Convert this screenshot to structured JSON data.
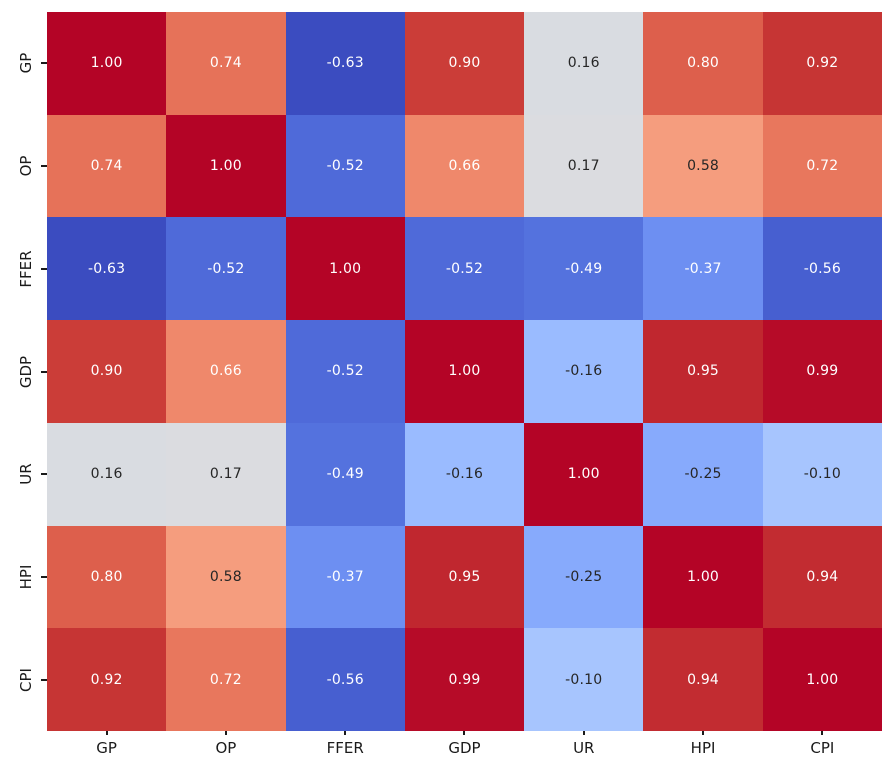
{
  "figure": {
    "background": "#ffffff",
    "tick_color": "#1a1a1a",
    "tick_label_color": "#1a1a1a"
  },
  "chart_data": {
    "type": "heatmap",
    "title": "",
    "subtitle": "",
    "categories": [
      "GP",
      "OP",
      "FFER",
      "GDP",
      "UR",
      "HPI",
      "CPI"
    ],
    "rows": [
      "GP",
      "OP",
      "FFER",
      "GDP",
      "UR",
      "HPI",
      "CPI"
    ],
    "matrix": [
      [
        1.0,
        0.74,
        -0.63,
        0.9,
        0.16,
        0.8,
        0.92
      ],
      [
        0.74,
        1.0,
        -0.52,
        0.66,
        0.17,
        0.58,
        0.72
      ],
      [
        -0.63,
        -0.52,
        1.0,
        -0.52,
        -0.49,
        -0.37,
        -0.56
      ],
      [
        0.9,
        0.66,
        -0.52,
        1.0,
        -0.16,
        0.95,
        0.99
      ],
      [
        0.16,
        0.17,
        -0.49,
        -0.16,
        1.0,
        -0.25,
        -0.1
      ],
      [
        0.8,
        0.58,
        -0.37,
        0.95,
        -0.25,
        1.0,
        0.94
      ],
      [
        0.92,
        0.72,
        -0.56,
        0.99,
        -0.1,
        0.94,
        1.0
      ]
    ],
    "vmin": -0.63,
    "vmax": 1.0,
    "decimals": 2,
    "annotations_on": true,
    "grid": false,
    "legend": "none",
    "colormap": {
      "name": "coolwarm",
      "stops": [
        "#3B4CC0",
        "#445ACC",
        "#4D68D7",
        "#5775E1",
        "#6282EA",
        "#6C8EF1",
        "#779AF7",
        "#82A5FB",
        "#8DB0FE",
        "#98B9FF",
        "#A3C2FF",
        "#AEC9FD",
        "#B8D0F9",
        "#C2D5F4",
        "#CCD9EE",
        "#D5DBE6",
        "#DDDDDD",
        "#E5D8D1",
        "#ECD3C5",
        "#F1CCB9",
        "#F5C4AD",
        "#F7BBA0",
        "#F7B194",
        "#F7A687",
        "#F49A7B",
        "#F18D6F",
        "#EC7F63",
        "#E57058",
        "#DE604D",
        "#D55042",
        "#CB3E38",
        "#C0282F",
        "#B40426"
      ]
    },
    "annotation_colors": {
      "light": "#ffffff",
      "dark": "#262626"
    },
    "luminance_threshold": 0.408
  }
}
